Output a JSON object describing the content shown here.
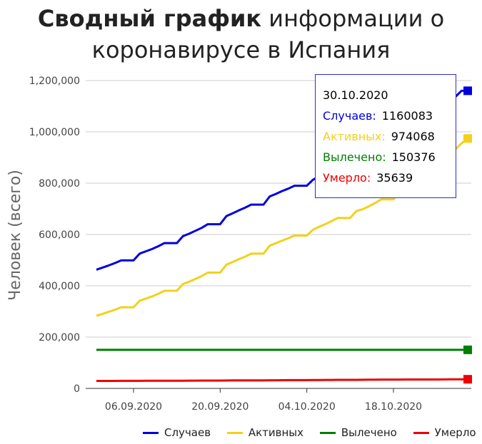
{
  "title": {
    "bold": "Сводный график",
    "rest_line1": " информации о",
    "line2": "коронавирусе в Испания"
  },
  "colors": {
    "cases": "#0000dd",
    "active": "#f2d11b",
    "recovered": "#007f00",
    "deaths": "#ee0000",
    "grid": "#cccccc"
  },
  "tooltip": {
    "date": "30.10.2020",
    "rows": [
      {
        "label": "Случаев:",
        "value": "1160083"
      },
      {
        "label": "Активных:",
        "value": "974068"
      },
      {
        "label": "Вылечено:",
        "value": "150376"
      },
      {
        "label": "Умерло:",
        "value": "35639"
      }
    ]
  },
  "chart_data": {
    "type": "line",
    "ylabel": "Человек (всего)",
    "xlabel": "",
    "ylim": [
      0,
      1200000
    ],
    "yticks": [
      0,
      200000,
      400000,
      600000,
      800000,
      1000000,
      1200000
    ],
    "ytick_labels": [
      "0",
      "200,000",
      "400,000",
      "600,000",
      "800,000",
      "1,000,000",
      "1,200,000"
    ],
    "xtick_labels": [
      "06.09.2020",
      "20.09.2020",
      "04.10.2020",
      "18.10.2020"
    ],
    "x": [
      "31.08.2020",
      "01.09.2020",
      "02.09.2020",
      "03.09.2020",
      "04.09.2020",
      "05.09.2020",
      "06.09.2020",
      "07.09.2020",
      "08.09.2020",
      "09.09.2020",
      "10.09.2020",
      "11.09.2020",
      "12.09.2020",
      "13.09.2020",
      "14.09.2020",
      "15.09.2020",
      "16.09.2020",
      "17.09.2020",
      "18.09.2020",
      "19.09.2020",
      "20.09.2020",
      "21.09.2020",
      "22.09.2020",
      "23.09.2020",
      "24.09.2020",
      "25.09.2020",
      "26.09.2020",
      "27.09.2020",
      "28.09.2020",
      "29.09.2020",
      "30.09.2020",
      "01.10.2020",
      "02.10.2020",
      "03.10.2020",
      "04.10.2020",
      "05.10.2020",
      "06.10.2020",
      "07.10.2020",
      "08.10.2020",
      "09.10.2020",
      "10.10.2020",
      "11.10.2020",
      "12.10.2020",
      "13.10.2020",
      "14.10.2020",
      "15.10.2020",
      "16.10.2020",
      "17.10.2020",
      "18.10.2020",
      "19.10.2020",
      "20.10.2020",
      "21.10.2020",
      "22.10.2020",
      "23.10.2020",
      "24.10.2020",
      "25.10.2020",
      "26.10.2020",
      "27.10.2020",
      "28.10.2020",
      "29.10.2020",
      "30.10.2020"
    ],
    "series": [
      {
        "name": "Случаев",
        "color": "#0000dd",
        "values": [
          462858,
          470973,
          479554,
          488513,
          498989,
          498989,
          498989,
          525549,
          534513,
          543379,
          554143,
          566326,
          566326,
          566326,
          593730,
          603167,
          614360,
          625651,
          640040,
          640040,
          640040,
          671468,
          682267,
          693556,
          704209,
          716481,
          716481,
          716481,
          748266,
          758172,
          769188,
          778607,
          789932,
          789932,
          789932,
          813412,
          825410,
          835901,
          848324,
          861112,
          861112,
          861112,
          888968,
          896086,
          908056,
          921374,
          936560,
          936560,
          936560,
          974449,
          988322,
          1005295,
          1026281,
          1046132,
          1046132,
          1046132,
          1098320,
          1116738,
          1136503,
          1160083,
          1160083
        ]
      },
      {
        "name": "Активных",
        "color": "#f2d11b",
        "values": [
          283000,
          290500,
          298500,
          306800,
          316500,
          316500,
          316500,
          342000,
          350400,
          358700,
          369000,
          380600,
          380600,
          380600,
          407000,
          415900,
          426600,
          437400,
          451300,
          451300,
          451300,
          482200,
          492500,
          503300,
          513400,
          525200,
          525200,
          525200,
          556300,
          565700,
          576200,
          585100,
          595900,
          595900,
          595900,
          618700,
          630200,
          640200,
          652000,
          664200,
          664200,
          664200,
          691400,
          698000,
          709400,
          722100,
          736800,
          736800,
          736800,
          773700,
          787000,
          803500,
          823900,
          843300,
          843300,
          843300,
          894900,
          912700,
          931800,
          954900,
          974068
        ]
      },
      {
        "name": "Вылечено",
        "color": "#007f00",
        "values": [
          150376,
          150376,
          150376,
          150376,
          150376,
          150376,
          150376,
          150376,
          150376,
          150376,
          150376,
          150376,
          150376,
          150376,
          150376,
          150376,
          150376,
          150376,
          150376,
          150376,
          150376,
          150376,
          150376,
          150376,
          150376,
          150376,
          150376,
          150376,
          150376,
          150376,
          150376,
          150376,
          150376,
          150376,
          150376,
          150376,
          150376,
          150376,
          150376,
          150376,
          150376,
          150376,
          150376,
          150376,
          150376,
          150376,
          150376,
          150376,
          150376,
          150376,
          150376,
          150376,
          150376,
          150376,
          150376,
          150376,
          150376,
          150376,
          150376,
          150376,
          150376
        ]
      },
      {
        "name": "Умерло",
        "color": "#ee0000",
        "values": [
          29094,
          29152,
          29194,
          29234,
          29418,
          29418,
          29418,
          29516,
          29594,
          29699,
          29747,
          29848,
          29848,
          29848,
          30004,
          30243,
          30405,
          30495,
          30663,
          30663,
          30663,
          30904,
          31034,
          31118,
          31232,
          31411,
          31411,
          31411,
          31614,
          31791,
          31973,
          32086,
          32225,
          32225,
          32225,
          32562,
          32688,
          32929,
          33124,
          33204,
          33204,
          33204,
          33413,
          33553,
          33775,
          33992,
          34366,
          34366,
          34366,
          34521,
          34752,
          34752,
          34752,
          34752,
          34752,
          34752,
          35031,
          35298,
          35466,
          35639,
          35639
        ]
      }
    ],
    "legend": [
      "Случаев",
      "Активных",
      "Вылечено",
      "Умерло"
    ],
    "legend_position": "bottom",
    "grid": true
  }
}
